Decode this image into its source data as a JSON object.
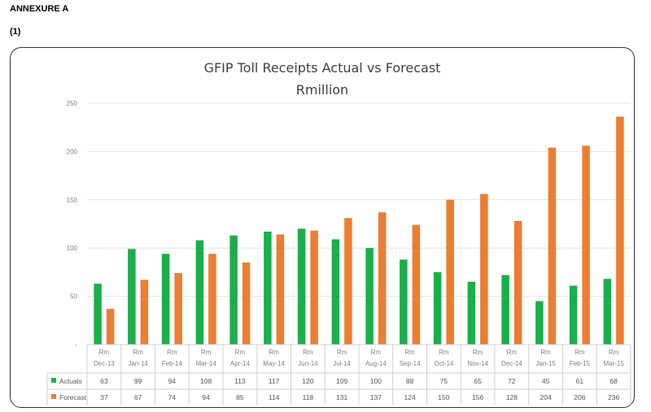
{
  "page": {
    "heading": "ANNEXURE A",
    "subheading": "(1)"
  },
  "chart_data": {
    "type": "bar",
    "title": "GFIP Toll Receipts Actual vs Forecast",
    "subtitle": "Rmillion",
    "categories": [
      "Dec-13",
      "Jan-14",
      "Feb-14",
      "Mar-14",
      "Apr-14",
      "May-14",
      "Jun-14",
      "Jul-14",
      "Aug-14",
      "Sep-14",
      "Oct-14",
      "Nov-14",
      "Dec-14",
      "Jan-15",
      "Feb-15",
      "Mar-15"
    ],
    "category_prefix": "Rm",
    "series": [
      {
        "name": "Actuals",
        "color": "#1aaf4b",
        "values": [
          63,
          99,
          94,
          108,
          113,
          117,
          120,
          109,
          100,
          88,
          75,
          65,
          72,
          45,
          61,
          68
        ]
      },
      {
        "name": "Forecast",
        "color": "#ed7d31",
        "values": [
          37,
          67,
          74,
          94,
          85,
          114,
          118,
          131,
          137,
          124,
          150,
          156,
          128,
          204,
          206,
          236
        ]
      }
    ],
    "ylim": [
      0,
      250
    ],
    "yticks": [
      0,
      50,
      100,
      150,
      200,
      250
    ],
    "ytick_labels": [
      "-",
      "50",
      "100",
      "150",
      "200",
      "250"
    ],
    "grid": true,
    "legend": "data-table"
  }
}
